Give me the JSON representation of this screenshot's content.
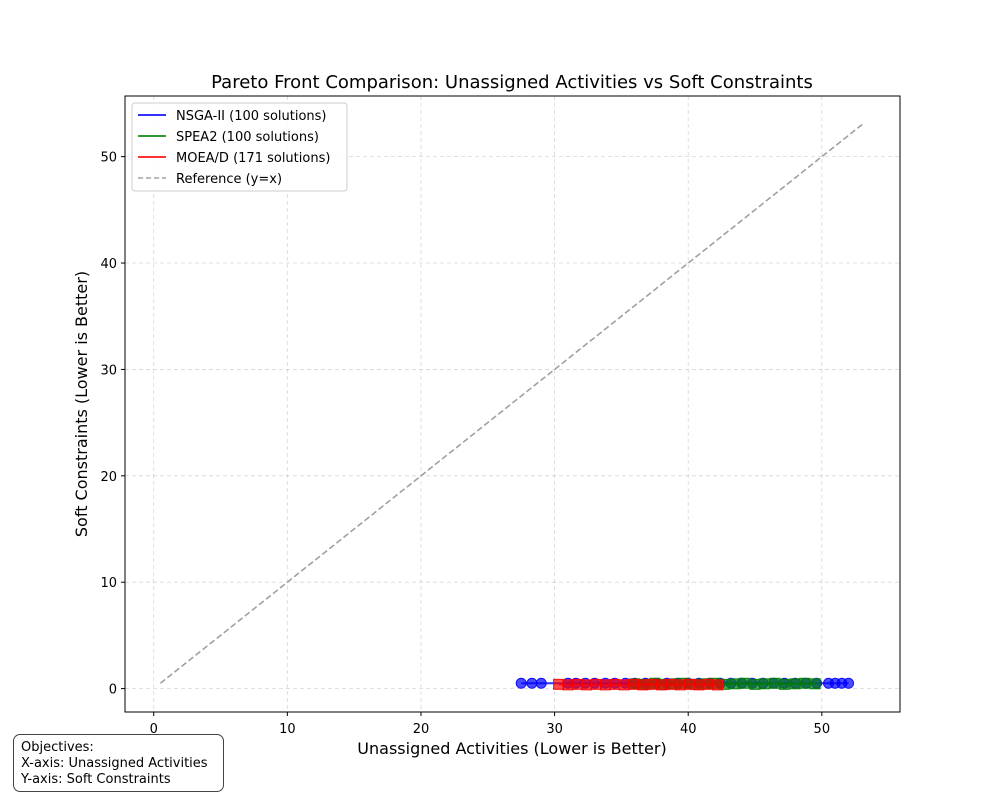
{
  "chart_data": {
    "type": "scatter",
    "title": "Pareto Front Comparison: Unassigned Activities vs Soft Constraints",
    "xlabel": "Unassigned Activities (Lower is Better)",
    "ylabel": "Soft Constraints (Lower is Better)",
    "xlim": [
      -2.15,
      55.85
    ],
    "ylim": [
      -2.2,
      55.7
    ],
    "x_ticks": [
      0,
      10,
      20,
      30,
      40,
      50
    ],
    "y_ticks": [
      0,
      10,
      20,
      30,
      40,
      50
    ],
    "grid": true,
    "legend_position": "top-left",
    "series": [
      {
        "name": "NSGA-II (100 solutions)",
        "color": "#0000ff",
        "marker": "circle",
        "x": [
          27.5,
          28.3,
          29.0,
          31.0,
          31.6,
          32.3,
          33.0,
          33.8,
          34.5,
          35.3,
          36.0,
          36.8,
          37.6,
          38.4,
          39.2,
          40.0,
          40.8,
          41.6,
          42.4,
          43.2,
          44.0,
          44.8,
          45.6,
          46.4,
          47.2,
          48.0,
          48.8,
          49.6,
          50.5,
          51.0,
          51.5,
          52.0
        ],
        "y": [
          0.5,
          0.5,
          0.5,
          0.5,
          0.5,
          0.5,
          0.5,
          0.5,
          0.5,
          0.5,
          0.5,
          0.5,
          0.5,
          0.5,
          0.5,
          0.5,
          0.5,
          0.5,
          0.5,
          0.5,
          0.5,
          0.5,
          0.5,
          0.5,
          0.5,
          0.5,
          0.5,
          0.5,
          0.5,
          0.5,
          0.5,
          0.5
        ]
      },
      {
        "name": "SPEA2 (100 solutions)",
        "color": "#008000",
        "marker": "square",
        "x": [
          36.0,
          36.8,
          37.5,
          38.2,
          39.0,
          39.7,
          40.5,
          41.2,
          42.0,
          42.7,
          43.5,
          44.2,
          45.0,
          45.7,
          46.5,
          47.2,
          48.0,
          48.7,
          49.5
        ],
        "y": [
          0.45,
          0.4,
          0.5,
          0.4,
          0.45,
          0.5,
          0.4,
          0.45,
          0.5,
          0.4,
          0.45,
          0.5,
          0.4,
          0.45,
          0.5,
          0.4,
          0.45,
          0.5,
          0.45
        ]
      },
      {
        "name": "MOEA/D (171 solutions)",
        "color": "#ff0000",
        "marker": "square",
        "x": [
          30.3,
          31.0,
          31.7,
          32.4,
          33.1,
          33.8,
          34.5,
          35.2,
          35.9,
          36.6,
          37.3,
          38.0,
          38.7,
          39.4,
          40.1,
          40.8,
          41.5,
          42.2
        ],
        "y": [
          0.4,
          0.35,
          0.4,
          0.35,
          0.4,
          0.35,
          0.4,
          0.35,
          0.4,
          0.35,
          0.4,
          0.35,
          0.4,
          0.35,
          0.4,
          0.35,
          0.4,
          0.35
        ]
      }
    ],
    "reference_line": {
      "name": "Reference (y=x)",
      "color": "#a0a0a0",
      "x": [
        0.5,
        53.2
      ],
      "y": [
        0.5,
        53.2
      ]
    }
  },
  "annotation": {
    "line1": "Objectives:",
    "line2": "X-axis: Unassigned Activities",
    "line3": "Y-axis: Soft Constraints"
  }
}
